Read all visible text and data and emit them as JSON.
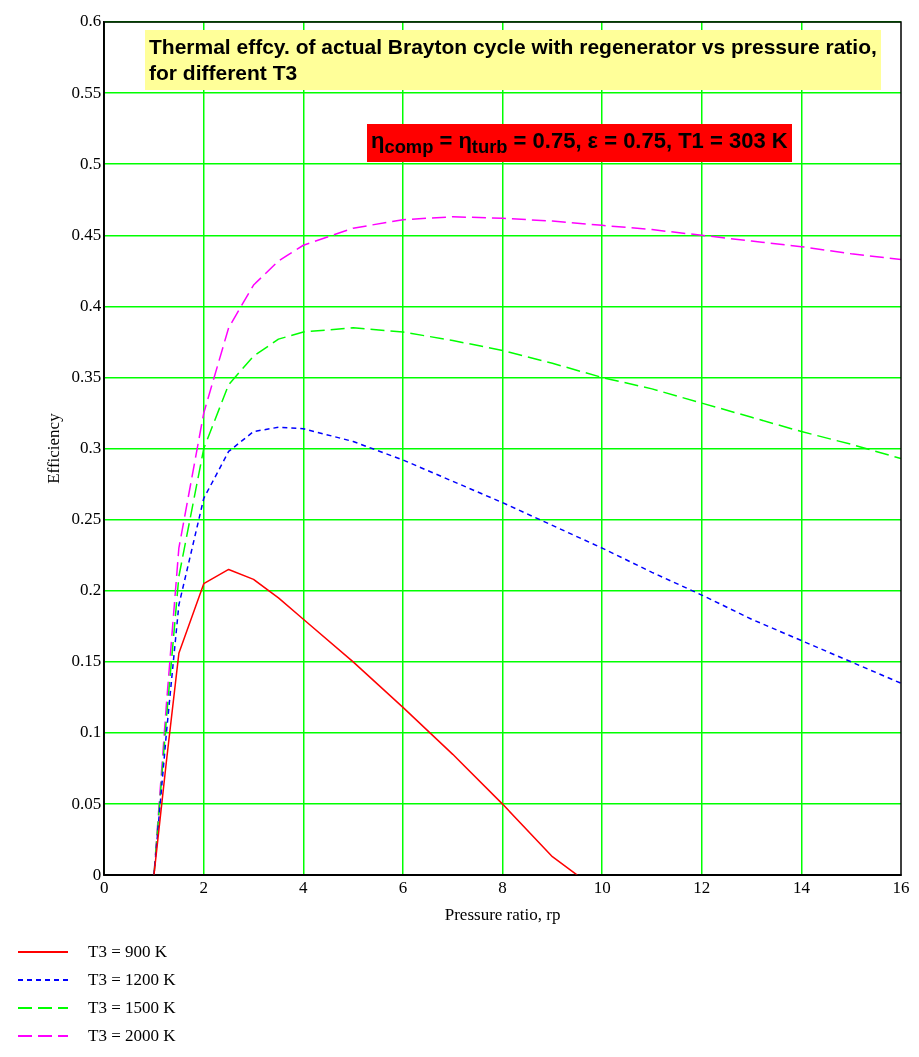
{
  "chart_data": {
    "type": "line",
    "title": "Thermal effcy. of actual Brayton cycle with regenerator vs pressure ratio, for different T3",
    "annotations": [
      "η$_{comp}$ = η$_{turb}$ = 0.75, ε = 0.75, T1 = 303 K"
    ],
    "xlabel": "Pressure ratio, rp",
    "ylabel": "Efficiency",
    "x": [
      1,
      1.25,
      1.5,
      2,
      2.5,
      3,
      3.5,
      4,
      5,
      6,
      7,
      8,
      9,
      10,
      11,
      12,
      13,
      14,
      15,
      16
    ],
    "series": [
      {
        "name": "T3 = 900 K",
        "color": "#ff0000",
        "line_style": "solid",
        "x": [
          1,
          1.25,
          1.5,
          2,
          2.5,
          3,
          3.5,
          4,
          5,
          6,
          7,
          8,
          9,
          9.5
        ],
        "values": [
          0,
          0.08,
          0.156,
          0.205,
          0.215,
          0.208,
          0.195,
          0.18,
          0.15,
          0.118,
          0.085,
          0.05,
          0.013,
          0
        ]
      },
      {
        "name": "T3 = 1200 K",
        "color": "#0000ff",
        "line_style": "dotted",
        "values": [
          0,
          0.1,
          0.19,
          0.265,
          0.298,
          0.312,
          0.315,
          0.314,
          0.305,
          0.292,
          0.277,
          0.262,
          0.246,
          0.23,
          0.213,
          0.197,
          0.18,
          0.165,
          0.15,
          0.135
        ]
      },
      {
        "name": "T3 = 1500 K",
        "color": "#00ff00",
        "line_style": "dashed",
        "values": [
          0,
          0.11,
          0.21,
          0.3,
          0.345,
          0.365,
          0.377,
          0.382,
          0.385,
          0.382,
          0.376,
          0.369,
          0.36,
          0.35,
          0.342,
          0.332,
          0.322,
          0.312,
          0.303,
          0.293
        ]
      },
      {
        "name": "T3 = 2000 K",
        "color": "#ff00ff",
        "line_style": "dashed",
        "values": [
          0,
          0.12,
          0.23,
          0.325,
          0.385,
          0.415,
          0.432,
          0.443,
          0.455,
          0.461,
          0.463,
          0.462,
          0.46,
          0.457,
          0.454,
          0.45,
          0.446,
          0.442,
          0.437,
          0.433
        ]
      }
    ],
    "xlim": [
      0,
      16
    ],
    "xticks": [
      0,
      2,
      4,
      6,
      8,
      10,
      12,
      14,
      16
    ],
    "ylim": [
      0,
      0.6
    ],
    "yticks": [
      0,
      0.05,
      0.1,
      0.15,
      0.2,
      0.25,
      0.3,
      0.35,
      0.4,
      0.45,
      0.5,
      0.55,
      0.6
    ],
    "grid": true,
    "legend": "bottom",
    "marker": "none"
  }
}
